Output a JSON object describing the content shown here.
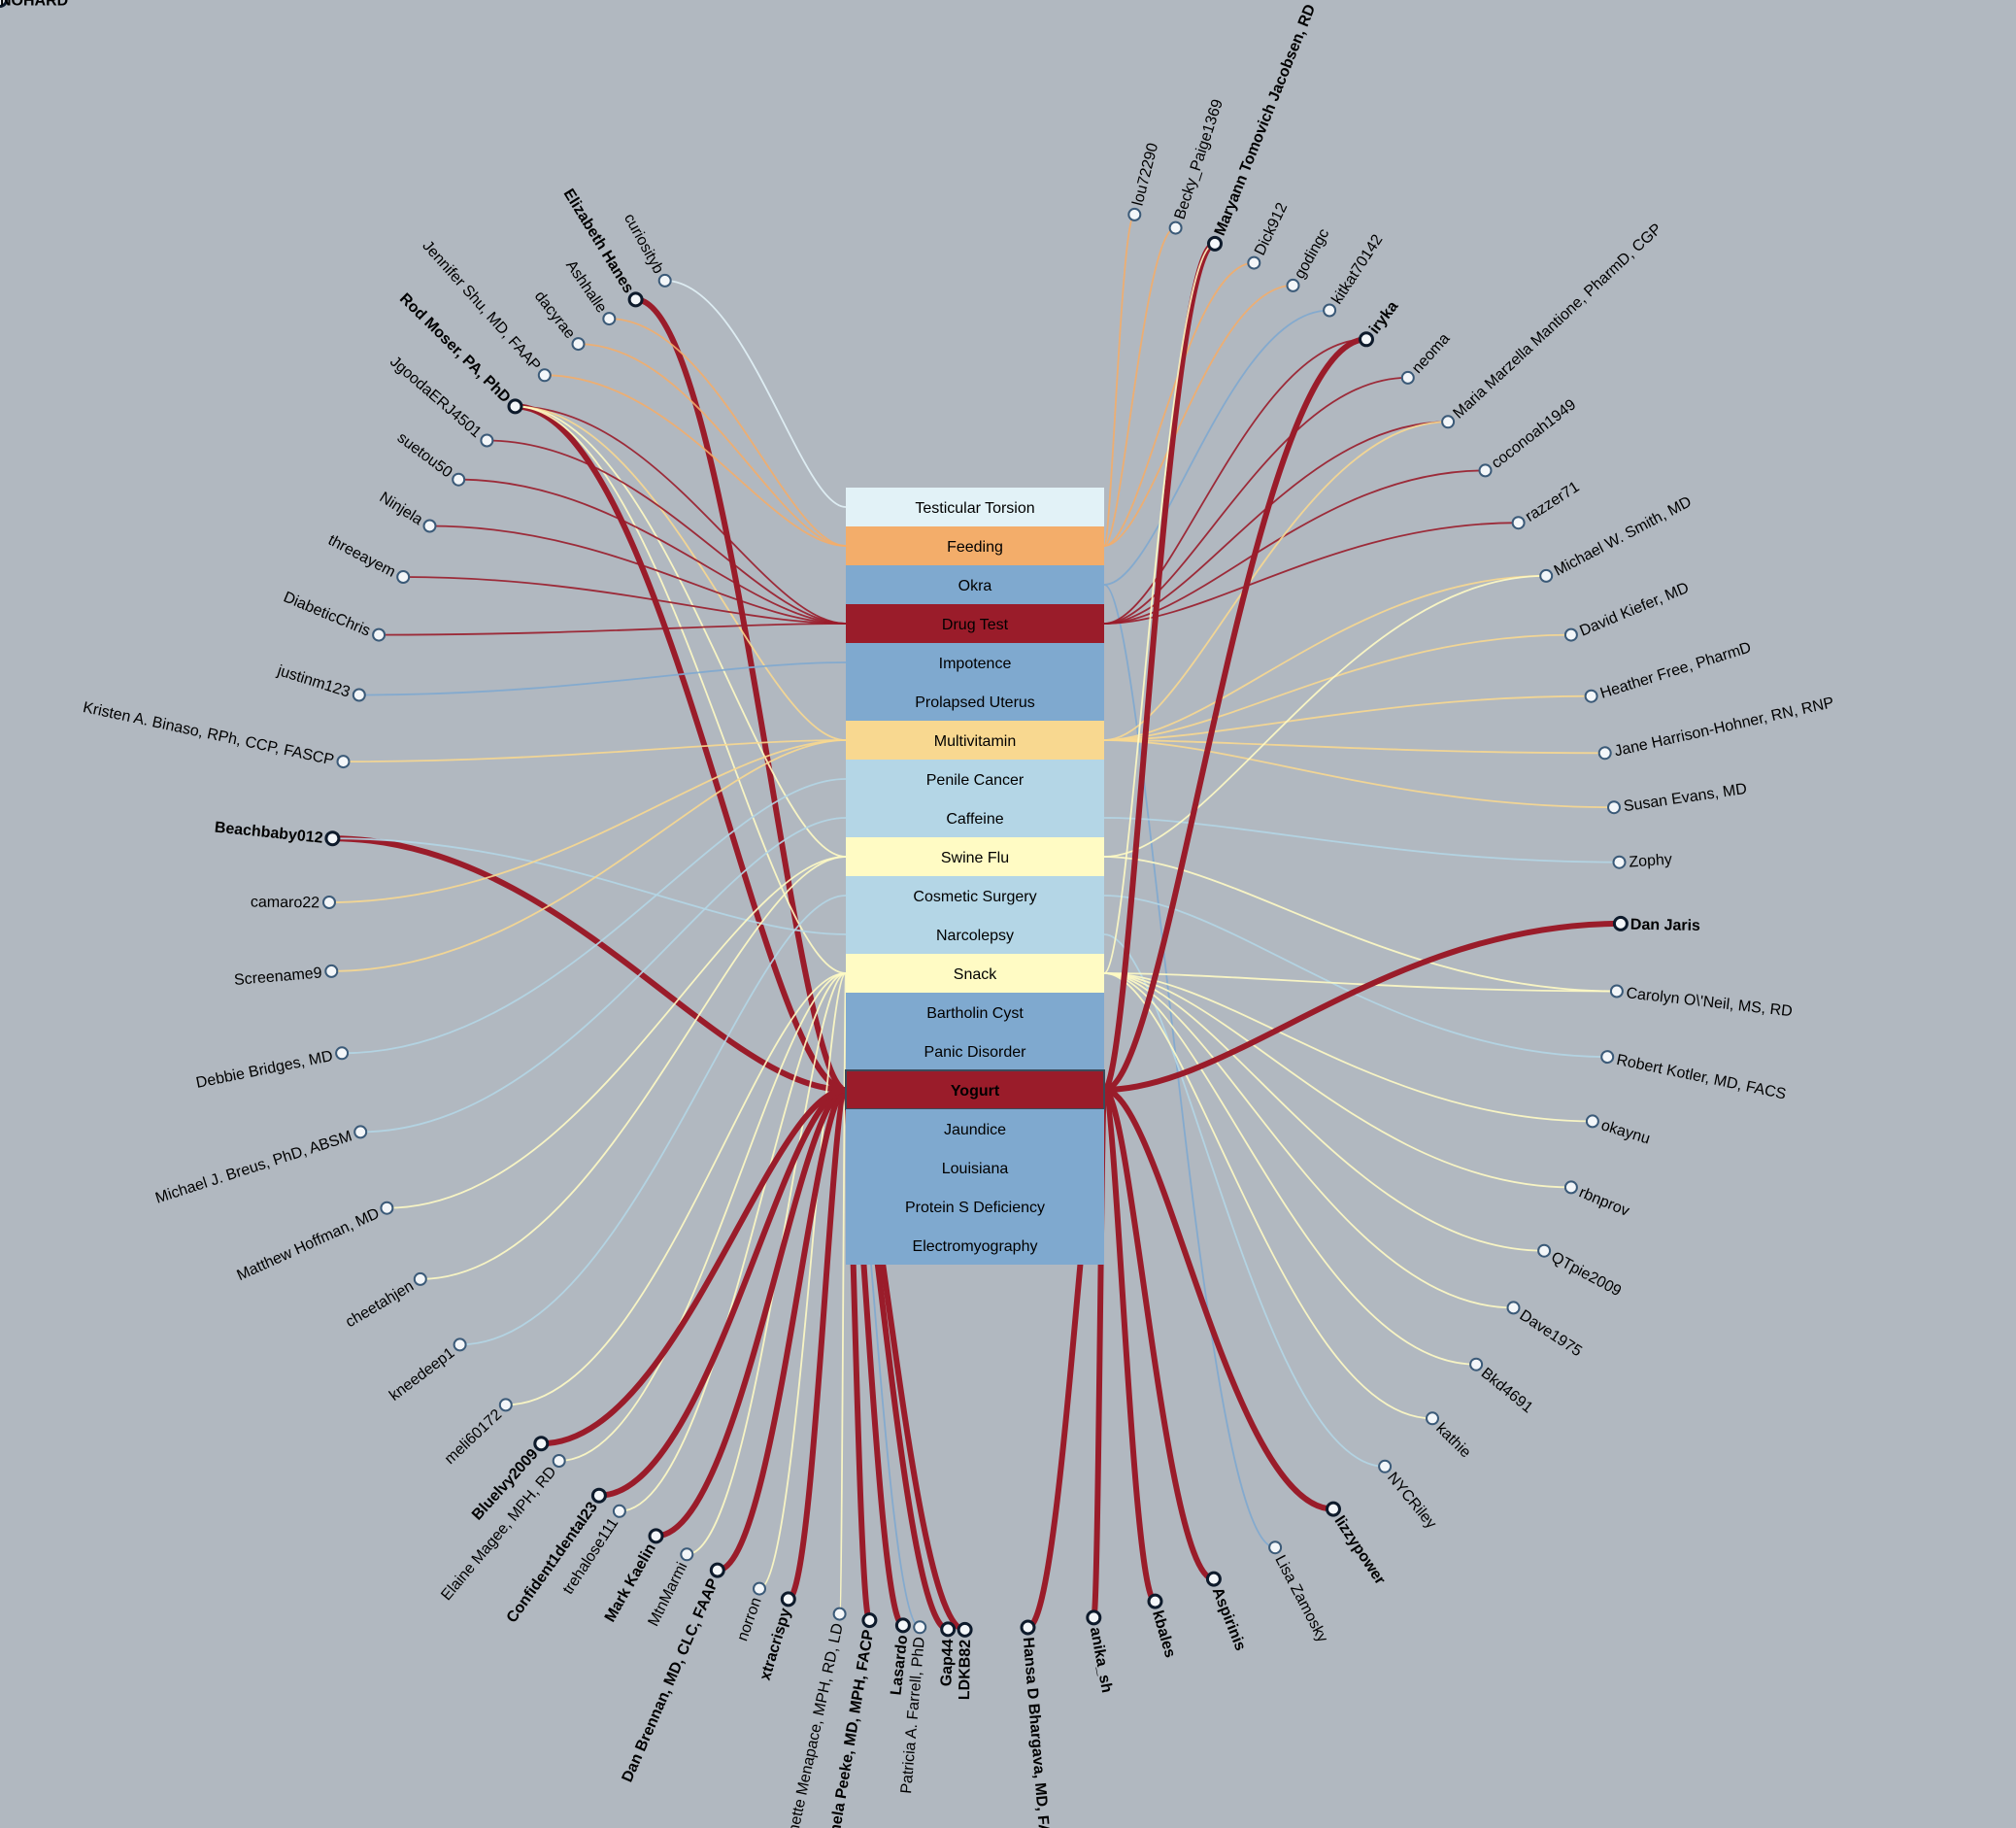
{
  "colors": {
    "background": "#b1b8c0",
    "highlight": "#9a1c2a",
    "Testicular Torsion": "#e2f2f7",
    "Feeding": "#f3ad6a",
    "Okra": "#7fa9cf",
    "Drug Test": "#9a1c2a",
    "Impotence": "#7fa9cf",
    "Prolapsed Uterus": "#7fa9cf",
    "Multivitamin": "#f8d890",
    "Penile Cancer": "#b4d6e6",
    "Caffeine": "#b4d6e6",
    "Swine Flu": "#fffbc4",
    "Cosmetic Surgery": "#b4d6e6",
    "Narcolepsy": "#b4d6e6",
    "Snack": "#fffbc4",
    "Bartholin Cyst": "#7fa9cf",
    "Panic Disorder": "#7fa9cf",
    "Yogurt": "#9a1c2a",
    "Jaundice": "#7fa9cf",
    "Louisiana": "#7fa9cf",
    "Protein S Deficiency": "#7fa9cf",
    "Electromyography": "#7fa9cf"
  },
  "topics": [
    {
      "label": "Testicular Torsion"
    },
    {
      "label": "Feeding"
    },
    {
      "label": "Okra"
    },
    {
      "label": "Drug Test"
    },
    {
      "label": "Impotence"
    },
    {
      "label": "Prolapsed Uterus"
    },
    {
      "label": "Multivitamin"
    },
    {
      "label": "Penile Cancer"
    },
    {
      "label": "Caffeine"
    },
    {
      "label": "Swine Flu"
    },
    {
      "label": "Cosmetic Surgery"
    },
    {
      "label": "Narcolepsy"
    },
    {
      "label": "Snack"
    },
    {
      "label": "Bartholin Cyst"
    },
    {
      "label": "Panic Disorder"
    },
    {
      "label": "Yogurt",
      "bold": true
    },
    {
      "label": "Jaundice"
    },
    {
      "label": "Louisiana"
    },
    {
      "label": "Protein S Deficiency"
    },
    {
      "label": "Electromyography"
    }
  ],
  "users": [
    {
      "name": "curiosityb",
      "topics": [
        "Testicular Torsion"
      ]
    },
    {
      "name": "Elizabeth Hanes",
      "bold": true,
      "topics": [
        "Yogurt"
      ]
    },
    {
      "name": "Ashhalle",
      "topics": [
        "Feeding"
      ]
    },
    {
      "name": "dacyrae",
      "topics": [
        "Feeding"
      ]
    },
    {
      "name": "Jennifer Shu, MD, FAAP",
      "topics": [
        "Feeding"
      ]
    },
    {
      "name": "Rod Moser, PA, PhD",
      "bold": true,
      "topics": [
        "Yogurt",
        "Drug Test",
        "Multivitamin",
        "Swine Flu",
        "Snack"
      ]
    },
    {
      "name": "JgoodaERJ4501",
      "topics": [
        "Drug Test"
      ]
    },
    {
      "name": "suetou50",
      "topics": [
        "Drug Test"
      ]
    },
    {
      "name": "Ninjela",
      "topics": [
        "Drug Test"
      ]
    },
    {
      "name": "threeayem",
      "topics": [
        "Drug Test"
      ]
    },
    {
      "name": "DiabeticChris",
      "topics": [
        "Drug Test"
      ]
    },
    {
      "name": "justinm123",
      "topics": [
        "Impotence"
      ]
    },
    {
      "name": "Kristen A. Binaso, RPh, CCP, FASCP",
      "topics": [
        "Multivitamin"
      ]
    },
    {
      "name": "Beachbaby012",
      "bold": true,
      "topics": [
        "Yogurt",
        "Narcolepsy"
      ]
    },
    {
      "name": "camaro22",
      "topics": [
        "Multivitamin"
      ]
    },
    {
      "name": "Screename9",
      "topics": [
        "Multivitamin"
      ]
    },
    {
      "name": "Debbie Bridges, MD",
      "topics": [
        "Penile Cancer"
      ]
    },
    {
      "name": "Michael J. Breus, PhD, ABSM",
      "topics": [
        "Caffeine"
      ]
    },
    {
      "name": "Matthew Hoffman, MD",
      "topics": [
        "Swine Flu"
      ]
    },
    {
      "name": "cheetahjen",
      "topics": [
        "Swine Flu"
      ]
    },
    {
      "name": "kneedeep1",
      "topics": [
        "Cosmetic Surgery"
      ]
    },
    {
      "name": "meli60172",
      "topics": [
        "Snack"
      ]
    },
    {
      "name": "Elaine Magee, MPH, RD",
      "topics": [
        "Snack"
      ]
    },
    {
      "name": "trehalose111",
      "topics": [
        "Snack"
      ]
    },
    {
      "name": "MtnMarmi",
      "topics": [
        "Snack"
      ]
    },
    {
      "name": "norron",
      "topics": [
        "Snack"
      ]
    },
    {
      "name": "Jeanette Menapace, MPH, RD, LD",
      "topics": [
        "Snack"
      ]
    },
    {
      "name": "Patricia A. Farrell, PhD",
      "topics": [
        "Panic Disorder"
      ]
    },
    {
      "name": "Gap44",
      "bold": true,
      "topics": [
        "Yogurt"
      ]
    },
    {
      "name": "Pamela Peeke, MD, MPH, FACP",
      "bold": true,
      "topics": [
        "Yogurt"
      ]
    },
    {
      "name": "xtracrispy",
      "bold": true,
      "topics": [
        "Yogurt"
      ]
    },
    {
      "name": "Dan Brennan, MD, CLC, FAAP",
      "bold": true,
      "topics": [
        "Yogurt"
      ]
    },
    {
      "name": "Mark Kaelin",
      "bold": true,
      "topics": [
        "Yogurt"
      ]
    },
    {
      "name": "Confident1dental23",
      "bold": true,
      "topics": [
        "Yogurt"
      ]
    },
    {
      "name": "Bluelvy2009",
      "bold": true,
      "topics": [
        "Yogurt"
      ]
    },
    {
      "name": "Lisa Zamosky",
      "topics": [
        "Okra"
      ]
    },
    {
      "name": "Aspirinis",
      "bold": true,
      "topics": [
        "Yogurt"
      ]
    },
    {
      "name": "kbales",
      "bold": true,
      "topics": [
        "Yogurt"
      ]
    },
    {
      "name": "anika_sh",
      "bold": true,
      "topics": [
        "Yogurt"
      ]
    },
    {
      "name": "Hansa D Bhargava, MD, FAAP",
      "bold": true,
      "topics": [
        "Yogurt"
      ]
    },
    {
      "name": "LDKB82",
      "bold": true,
      "topics": [
        "Yogurt"
      ]
    },
    {
      "name": "Lasardo",
      "bold": true,
      "topics": [
        "Yogurt"
      ]
    },
    {
      "name": "lizzypower",
      "bold": true,
      "topics": [
        "Yogurt"
      ]
    },
    {
      "name": "NYCRiley",
      "topics": [
        "Narcolepsy"
      ]
    },
    {
      "name": "kathie",
      "topics": [
        "Snack"
      ]
    },
    {
      "name": "Bkd4691",
      "topics": [
        "Snack"
      ]
    },
    {
      "name": "Dave1975",
      "topics": [
        "Snack"
      ]
    },
    {
      "name": "QTpie2009",
      "topics": [
        "Snack"
      ]
    },
    {
      "name": "rbnprov",
      "topics": [
        "Snack"
      ]
    },
    {
      "name": "okaynu",
      "topics": [
        "Snack"
      ]
    },
    {
      "name": "Robert Kotler, MD, FACS",
      "topics": [
        "Cosmetic Surgery"
      ]
    },
    {
      "name": "Carolyn O\\'Neil, MS, RD",
      "topics": [
        "Swine Flu",
        "Snack"
      ]
    },
    {
      "name": "Dan Jaris",
      "bold": true,
      "topics": [
        "Yogurt"
      ]
    },
    {
      "name": "Zophy",
      "topics": [
        "Caffeine"
      ]
    },
    {
      "name": "Susan Evans, MD",
      "topics": [
        "Multivitamin"
      ]
    },
    {
      "name": "Jane Harrison-Hohner, RN, RNP",
      "topics": [
        "Multivitamin"
      ]
    },
    {
      "name": "Heather Free, PharmD",
      "topics": [
        "Multivitamin"
      ]
    },
    {
      "name": "David Kiefer, MD",
      "topics": [
        "Multivitamin"
      ]
    },
    {
      "name": "Michael W. Smith, MD",
      "topics": [
        "Multivitamin",
        "Swine Flu"
      ]
    },
    {
      "name": "razzer71",
      "topics": [
        "Drug Test"
      ]
    },
    {
      "name": "coconoah1949",
      "topics": [
        "Drug Test"
      ]
    },
    {
      "name": "Maria Marzella Mantione, PharmD, CGP",
      "topics": [
        "Drug Test",
        "Multivitamin"
      ]
    },
    {
      "name": "neoma",
      "topics": [
        "Drug Test"
      ]
    },
    {
      "name": "iryka",
      "bold": true,
      "topics": [
        "Yogurt",
        "Drug Test"
      ]
    },
    {
      "name": "kitkat70142",
      "topics": [
        "Okra"
      ]
    },
    {
      "name": "godingc",
      "topics": [
        "Feeding"
      ]
    },
    {
      "name": "Dick912",
      "topics": [
        "Feeding"
      ]
    },
    {
      "name": "Maryann Tomovich Jacobsen, RD",
      "bold": true,
      "topics": [
        "Yogurt",
        "Snack"
      ]
    },
    {
      "name": "Becky_Paige1369",
      "topics": [
        "Feeding"
      ]
    },
    {
      "name": "lou72290",
      "topics": [
        "Feeding"
      ]
    },
    {
      "name": "NOHARD",
      "bold": true,
      "topics": [
        "Yogurt",
        "Testicular Torsion"
      ]
    }
  ]
}
